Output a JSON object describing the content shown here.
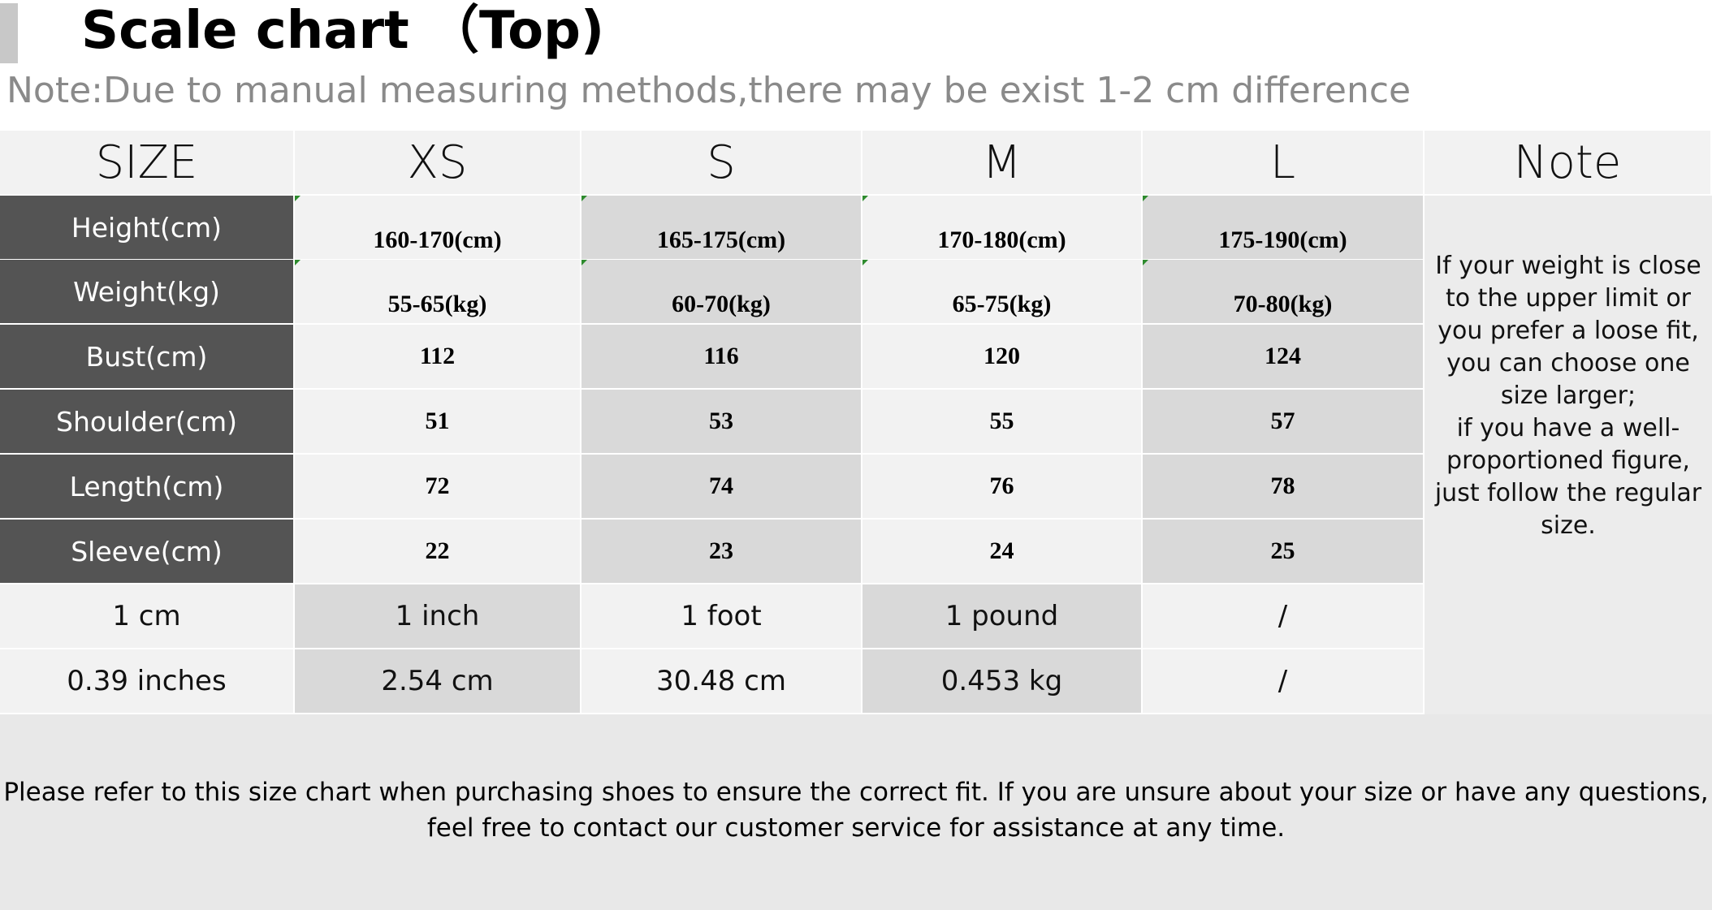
{
  "title": "Scale chart （Top)",
  "note": "Note:Due to manual measuring methods,there may be exist 1-2 cm difference",
  "table": {
    "headers": [
      "SIZE",
      "XS",
      "S",
      "M",
      "L",
      "Note"
    ],
    "rows": [
      {
        "label": "Height(cm)",
        "values": [
          "160-170(cm)",
          "165-175(cm)",
          "170-180(cm)",
          "175-190(cm)"
        ]
      },
      {
        "label": "Weight(kg)",
        "values": [
          "55-65(kg)",
          "60-70(kg)",
          "65-75(kg)",
          "70-80(kg)"
        ]
      },
      {
        "label": "Bust(cm)",
        "values": [
          "112",
          "116",
          "120",
          "124"
        ]
      },
      {
        "label": "Shoulder(cm)",
        "values": [
          "51",
          "53",
          "55",
          "57"
        ]
      },
      {
        "label": "Length(cm)",
        "values": [
          "72",
          "74",
          "76",
          "78"
        ]
      },
      {
        "label": "Sleeve(cm)",
        "values": [
          "22",
          "23",
          "24",
          "25"
        ]
      }
    ],
    "conversions": [
      [
        "1 cm",
        "1 inch",
        "1 foot",
        "1 pound",
        "/"
      ],
      [
        "0.39 inches",
        "2.54 cm",
        "30.48 cm",
        "0.453 kg",
        "/"
      ]
    ],
    "note_text": "If your weight is close to the upper limit or you prefer a loose fit, you can choose one size larger;\nif you have a well-proportioned figure, just follow the regular size."
  },
  "footer": {
    "line1": "Please refer to this size chart when purchasing shoes to ensure the correct fit. If you are unsure about your size or have any questions,",
    "line2": "feel free to contact our customer service for assistance at any time."
  }
}
